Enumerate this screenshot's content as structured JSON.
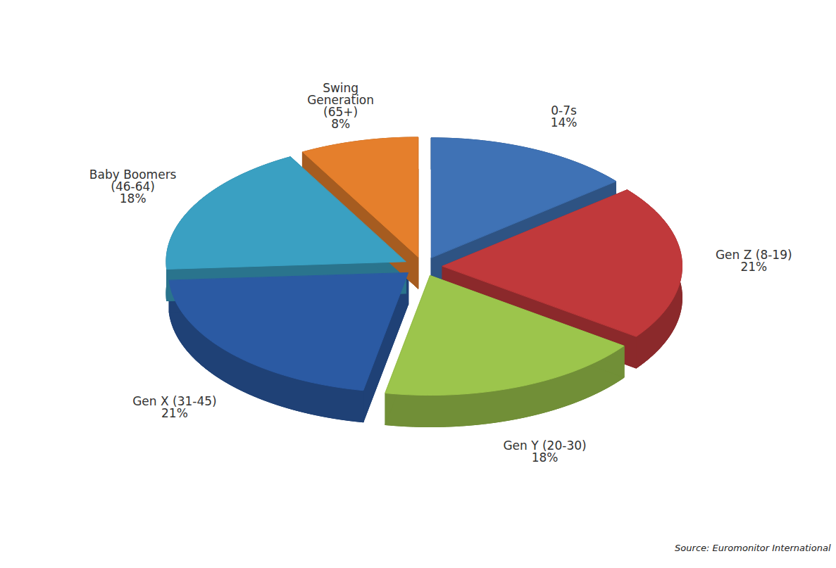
{
  "chart_data": {
    "type": "pie",
    "categories": [
      "0-7s",
      "Gen Z (8-19)",
      "Gen Y (20-30)",
      "Gen X (31-45)",
      "Baby Boomers (46-64)",
      "Swing Generation (65+)"
    ],
    "values": [
      14,
      21,
      18,
      21,
      18,
      8
    ],
    "value_labels": [
      "14%",
      "21%",
      "18%",
      "21%",
      "18%",
      "8%"
    ],
    "colors": [
      "#3f72b5",
      "#c0393b",
      "#9cc54c",
      "#2b5aa3",
      "#3aa0c2",
      "#e57f2c"
    ],
    "data_labels": true,
    "caption": "Source: Euromonitor International"
  }
}
